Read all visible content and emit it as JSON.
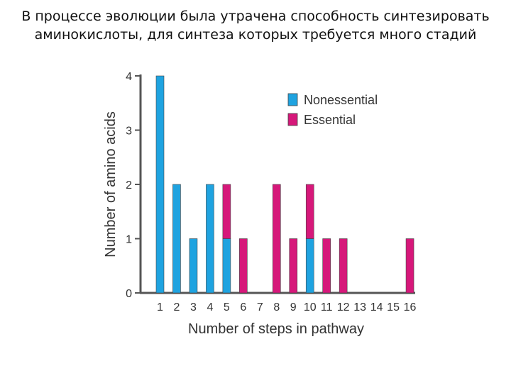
{
  "slide": {
    "title_line1": "В процессе эволюции была утрачена способность синтезировать",
    "title_line2": "аминокислоты, для синтеза которых требуется много стадий"
  },
  "chart_data": {
    "type": "bar",
    "stacked": true,
    "title": "",
    "xlabel": "Number of steps in pathway",
    "ylabel": "Number of amino acids",
    "categories": [
      "1",
      "2",
      "3",
      "4",
      "5",
      "6",
      "7",
      "8",
      "9",
      "10",
      "11",
      "12",
      "13",
      "14",
      "15",
      "16"
    ],
    "ylim": [
      0,
      4
    ],
    "yticks": [
      "0",
      "1",
      "2",
      "3",
      "4"
    ],
    "series": [
      {
        "name": "Nonessential",
        "color": "#1fa3e0",
        "values": [
          4,
          2,
          1,
          2,
          1,
          0,
          0,
          0,
          0,
          1,
          0,
          0,
          0,
          0,
          0,
          0
        ]
      },
      {
        "name": "Essential",
        "color": "#d6187a",
        "values": [
          0,
          0,
          0,
          0,
          1,
          1,
          0,
          2,
          1,
          1,
          1,
          1,
          0,
          0,
          0,
          1
        ]
      }
    ],
    "legend_position": "top-right",
    "grid": false
  }
}
